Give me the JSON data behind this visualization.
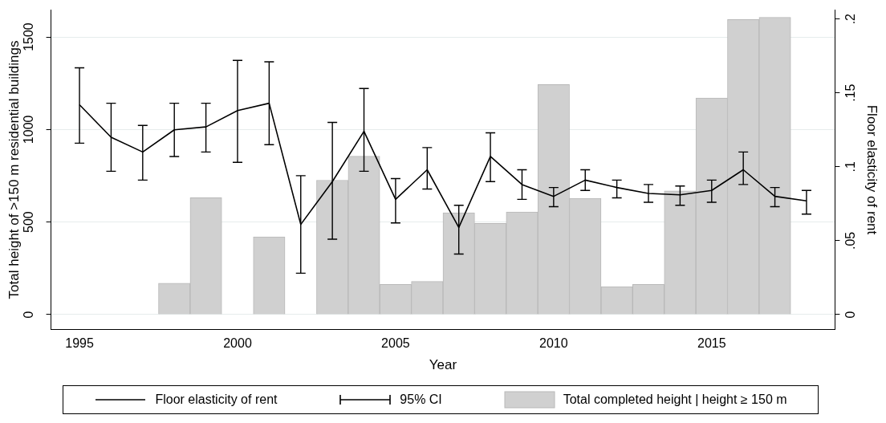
{
  "chart_data": {
    "type": "bar",
    "xlabel": "Year",
    "ylabel": "Total height of >150 m residential buildings",
    "y2label": "Floor elasticity of rent",
    "x": [
      1998,
      1999,
      2001,
      2003,
      2004,
      2005,
      2006,
      2007,
      2008,
      2009,
      2010,
      2011,
      2012,
      2013,
      2014,
      2015,
      2016,
      2017
    ],
    "series": [
      {
        "name": "Total completed height | height ≥ 150 m",
        "color": "#d0d0d0",
        "values": [
          170,
          632,
          420,
          726,
          856,
          163,
          179,
          550,
          493,
          554,
          1243,
          628,
          151,
          163,
          668,
          1170,
          1594,
          1606
        ]
      },
      {
        "name": "Floor elasticity of rent",
        "type": "line",
        "axis": "y2",
        "color": "#000000",
        "x": [
          1995,
          1996,
          1997,
          1998,
          1999,
          2000,
          2001,
          2002,
          2003,
          2004,
          2005,
          2006,
          2007,
          2008,
          2009,
          2010,
          2011,
          2012,
          2013,
          2014,
          2015,
          2016,
          2017,
          2018
        ],
        "values": [
          0.142,
          0.12,
          0.11,
          0.125,
          0.127,
          0.138,
          0.143,
          0.061,
          0.09,
          0.124,
          0.078,
          0.098,
          0.059,
          0.107,
          0.088,
          0.08,
          0.091,
          0.086,
          0.082,
          0.081,
          0.084,
          0.098,
          0.08,
          0.077
        ],
        "errors": [
          [
            0.116,
            0.167
          ],
          [
            0.097,
            0.143
          ],
          [
            0.091,
            0.128
          ],
          [
            0.107,
            0.143
          ],
          [
            0.11,
            0.143
          ],
          [
            0.103,
            0.172
          ],
          [
            0.115,
            0.171
          ],
          [
            0.028,
            0.094
          ],
          [
            0.051,
            0.13
          ],
          [
            0.097,
            0.153
          ],
          [
            0.062,
            0.092
          ],
          [
            0.085,
            0.113
          ],
          [
            0.041,
            0.074
          ],
          [
            0.09,
            0.123
          ],
          [
            0.078,
            0.098
          ],
          [
            0.073,
            0.086
          ],
          [
            0.084,
            0.098
          ],
          [
            0.079,
            0.091
          ],
          [
            0.076,
            0.088
          ],
          [
            0.074,
            0.087
          ],
          [
            0.076,
            0.091
          ],
          [
            0.088,
            0.11
          ],
          [
            0.073,
            0.086
          ],
          [
            0.068,
            0.084
          ]
        ]
      }
    ],
    "annotations": [
      "95% CI"
    ],
    "xlim": [
      1994.1,
      2018.9
    ],
    "xticks": [
      1995,
      2000,
      2005,
      2010,
      2015
    ],
    "ylim": [
      -80,
      1645
    ],
    "yticks": [
      0,
      500,
      1000,
      1500
    ],
    "y2lim": [
      -0.01,
      0.206
    ],
    "y2ticks": [
      0,
      {
        "value": 0.05,
        "label": ".05"
      },
      {
        "value": 0.1,
        "label": ".1"
      },
      {
        "value": 0.15,
        "label": ".15"
      },
      {
        "value": 0.2,
        "label": ".2"
      }
    ],
    "grid": "y",
    "legend": "bottom",
    "marker": "none",
    "line_style": "solid"
  }
}
